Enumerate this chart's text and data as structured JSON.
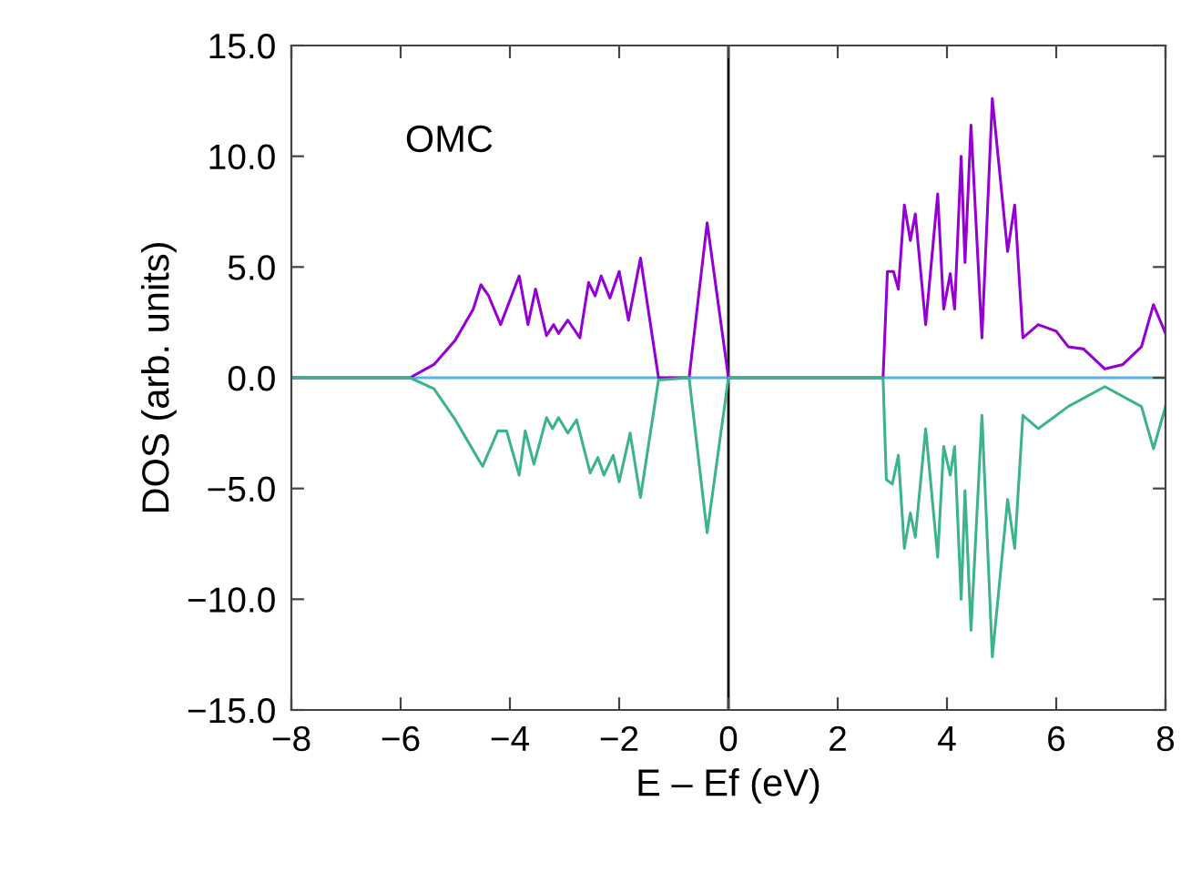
{
  "chart_data": {
    "type": "line",
    "xlabel": "E – Ef (eV)",
    "ylabel": "DOS (arb. units)",
    "annotations": [
      "OMC"
    ],
    "xlim": [
      -8,
      8
    ],
    "ylim": [
      -15,
      15
    ],
    "xticks": [
      {
        "value": -8,
        "label": "−8"
      },
      {
        "value": -6,
        "label": "−6"
      },
      {
        "value": -4,
        "label": "−4"
      },
      {
        "value": -2,
        "label": "−2"
      },
      0,
      2,
      4,
      6,
      8
    ],
    "yticks": [
      {
        "value": -15,
        "label": "−15.0"
      },
      {
        "value": -10,
        "label": "−10.0"
      },
      {
        "value": -5,
        "label": "−5.0"
      },
      {
        "value": 0,
        "label": "0.0"
      },
      {
        "value": 5,
        "label": "5.0"
      },
      {
        "value": 10,
        "label": "10.0"
      },
      {
        "value": 15,
        "label": "15.0"
      }
    ],
    "grid": false,
    "marker": "none",
    "line_style": "solid",
    "ref_lines": [
      {
        "axis": "y",
        "value": 0,
        "color": "#56b4e9"
      },
      {
        "axis": "x",
        "value": 0,
        "color": "#000000"
      }
    ],
    "series": [
      {
        "color": "#9400d3",
        "x": [
          -8,
          -5.83,
          -5.39,
          -5.0,
          -4.67,
          -4.53,
          -4.39,
          -4.17,
          -3.83,
          -3.67,
          -3.53,
          -3.33,
          -3.2,
          -3.11,
          -2.94,
          -2.72,
          -2.56,
          -2.44,
          -2.33,
          -2.17,
          -2.0,
          -1.83,
          -1.61,
          -1.28,
          -0.72,
          -0.39,
          0.0,
          2.83,
          2.91,
          3.02,
          3.11,
          3.22,
          3.33,
          3.42,
          3.61,
          3.83,
          3.94,
          4.06,
          4.14,
          4.26,
          4.33,
          4.44,
          4.64,
          4.83,
          5.11,
          5.24,
          5.39,
          5.67,
          6.0,
          6.22,
          6.5,
          6.89,
          7.22,
          7.56,
          7.78,
          8.0
        ],
        "values": [
          0,
          0,
          0.6,
          1.7,
          3.1,
          4.2,
          3.7,
          2.4,
          4.6,
          2.4,
          4.0,
          1.9,
          2.4,
          2.0,
          2.6,
          1.8,
          4.3,
          3.7,
          4.6,
          3.6,
          4.8,
          2.6,
          5.4,
          0,
          0,
          7.0,
          0,
          0,
          4.8,
          4.8,
          4.0,
          7.8,
          6.2,
          7.4,
          2.4,
          8.3,
          3.1,
          4.7,
          3.1,
          10.0,
          5.2,
          11.4,
          1.8,
          12.6,
          5.7,
          7.8,
          1.8,
          2.4,
          2.1,
          1.4,
          1.3,
          0.4,
          0.6,
          1.4,
          3.3,
          2.0
        ]
      },
      {
        "color": "#3cb38a",
        "x": [
          -8,
          -5.83,
          -5.39,
          -5.0,
          -4.5,
          -4.22,
          -4.06,
          -3.83,
          -3.72,
          -3.56,
          -3.33,
          -3.22,
          -3.11,
          -2.94,
          -2.78,
          -2.53,
          -2.39,
          -2.28,
          -2.11,
          -2.0,
          -1.8,
          -1.61,
          -1.28,
          -0.72,
          -0.39,
          0.0,
          2.83,
          2.89,
          3.0,
          3.11,
          3.22,
          3.33,
          3.42,
          3.61,
          3.83,
          3.94,
          4.06,
          4.14,
          4.26,
          4.33,
          4.44,
          4.64,
          4.83,
          5.11,
          5.24,
          5.39,
          5.67,
          6.22,
          6.89,
          7.56,
          7.78,
          8.0
        ],
        "values": [
          0,
          0,
          -0.5,
          -1.9,
          -4.0,
          -2.4,
          -2.4,
          -4.4,
          -2.4,
          -3.9,
          -1.8,
          -2.3,
          -1.8,
          -2.5,
          -1.9,
          -4.3,
          -3.6,
          -4.4,
          -3.5,
          -4.7,
          -2.5,
          -5.4,
          -0.1,
          0,
          -7.0,
          0,
          0,
          -4.6,
          -4.8,
          -3.5,
          -7.7,
          -6.1,
          -7.2,
          -2.3,
          -8.1,
          -3.1,
          -4.4,
          -3.1,
          -10.0,
          -5.1,
          -11.4,
          -1.7,
          -12.6,
          -5.5,
          -7.7,
          -1.7,
          -2.3,
          -1.3,
          -0.4,
          -1.3,
          -3.2,
          -1.3
        ]
      }
    ]
  }
}
